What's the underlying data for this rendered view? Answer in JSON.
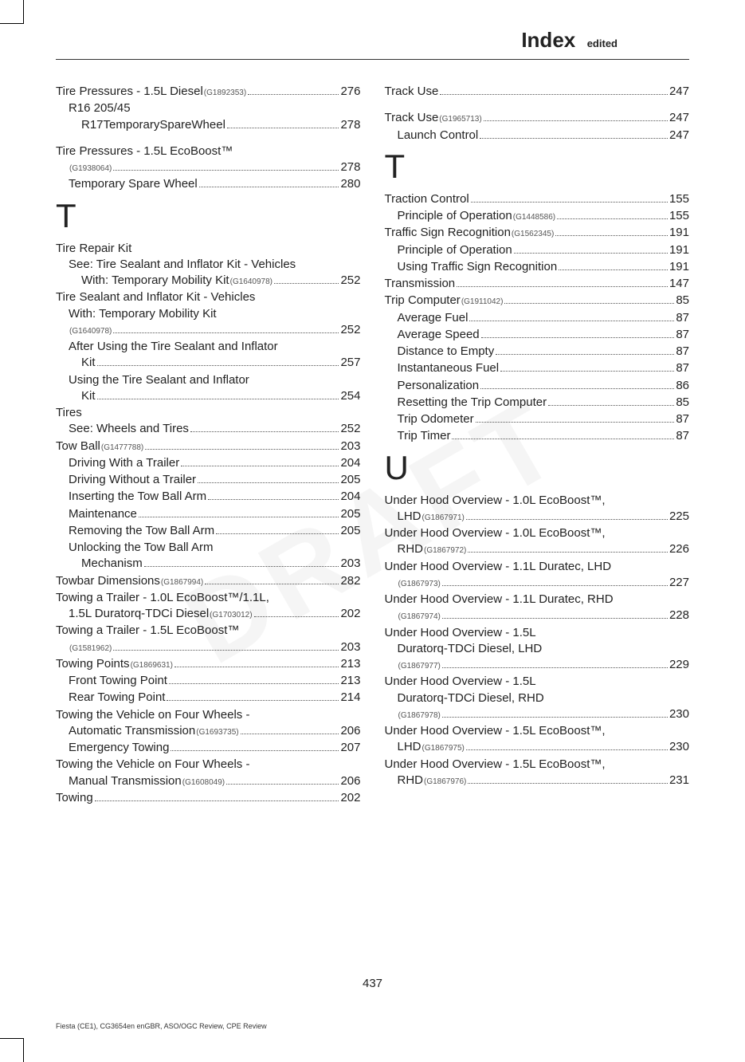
{
  "header": {
    "title": "Index",
    "sub": "edited"
  },
  "page_number": "437",
  "footer": "Fiesta (CE1), CG3654en enGBR, ASO/OGC Review, CPE Review",
  "watermark": "DRAFT",
  "left_col": [
    {
      "type": "entry",
      "indent": 0,
      "label": "Tire Pressures - 1.5L Diesel",
      "code": "(G1892353)",
      "page": "276"
    },
    {
      "type": "text",
      "indent": 1,
      "label": "R16 205/45"
    },
    {
      "type": "entry",
      "indent": 2,
      "label": "R17TemporarySpareWheel",
      "page": "278"
    },
    {
      "type": "gap"
    },
    {
      "type": "text",
      "indent": 0,
      "label": "Tire Pressures - 1.5L EcoBoost™"
    },
    {
      "type": "entry",
      "indent": 1,
      "label": "",
      "code": "(G1938064)",
      "page": "278"
    },
    {
      "type": "entry",
      "indent": 1,
      "label": "Temporary Spare Wheel",
      "page": "280"
    },
    {
      "type": "letter",
      "label": "T"
    },
    {
      "type": "text",
      "indent": 0,
      "label": "Tire Repair Kit"
    },
    {
      "type": "text",
      "indent": 1,
      "label": "See: Tire Sealant and Inflator Kit - Vehicles"
    },
    {
      "type": "entry",
      "indent": 2,
      "label": "With: Temporary Mobility Kit",
      "code": "(G1640978)",
      "page": "252"
    },
    {
      "type": "text",
      "indent": 0,
      "label": "Tire Sealant and Inflator Kit - Vehicles"
    },
    {
      "type": "text",
      "indent": 1,
      "label": "With: Temporary Mobility Kit"
    },
    {
      "type": "entry",
      "indent": 1,
      "label": "",
      "code": "(G1640978)",
      "page": "252"
    },
    {
      "type": "text",
      "indent": 1,
      "label": "After Using the Tire Sealant and Inflator"
    },
    {
      "type": "entry",
      "indent": 2,
      "label": "Kit",
      "page": "257"
    },
    {
      "type": "text",
      "indent": 1,
      "label": "Using the Tire Sealant and Inflator"
    },
    {
      "type": "entry",
      "indent": 2,
      "label": "Kit",
      "page": "254"
    },
    {
      "type": "text",
      "indent": 0,
      "label": "Tires"
    },
    {
      "type": "entry",
      "indent": 1,
      "label": "See: Wheels and Tires",
      "page": "252"
    },
    {
      "type": "entry",
      "indent": 0,
      "label": "Tow Ball",
      "code": "(G1477788)",
      "page": "203"
    },
    {
      "type": "entry",
      "indent": 1,
      "label": "Driving With a Trailer",
      "page": "204"
    },
    {
      "type": "entry",
      "indent": 1,
      "label": "Driving Without a Trailer",
      "page": "205"
    },
    {
      "type": "entry",
      "indent": 1,
      "label": "Inserting the Tow Ball Arm",
      "page": "204"
    },
    {
      "type": "entry",
      "indent": 1,
      "label": "Maintenance",
      "page": "205"
    },
    {
      "type": "entry",
      "indent": 1,
      "label": "Removing the Tow Ball Arm",
      "page": "205"
    },
    {
      "type": "text",
      "indent": 1,
      "label": "Unlocking the Tow Ball Arm"
    },
    {
      "type": "entry",
      "indent": 2,
      "label": "Mechanism",
      "page": "203"
    },
    {
      "type": "entry",
      "indent": 0,
      "label": "Towbar Dimensions",
      "code": "(G1867994)",
      "page": "282"
    },
    {
      "type": "text",
      "indent": 0,
      "label": "Towing a Trailer - 1.0L EcoBoost™/1.1L,"
    },
    {
      "type": "entry",
      "indent": 1,
      "label": "1.5L Duratorq-TDCi Diesel",
      "code": "(G1703012)",
      "page": "202"
    },
    {
      "type": "text",
      "indent": 0,
      "label": "Towing a Trailer - 1.5L EcoBoost™"
    },
    {
      "type": "entry",
      "indent": 1,
      "label": "",
      "code": "(G1581962)",
      "page": "203"
    },
    {
      "type": "entry",
      "indent": 0,
      "label": "Towing Points",
      "code": "(G1869631)",
      "page": "213"
    },
    {
      "type": "entry",
      "indent": 1,
      "label": "Front Towing Point",
      "page": "213"
    },
    {
      "type": "entry",
      "indent": 1,
      "label": "Rear Towing Point",
      "page": "214"
    },
    {
      "type": "text",
      "indent": 0,
      "label": "Towing the Vehicle on Four Wheels -"
    },
    {
      "type": "entry",
      "indent": 1,
      "label": "Automatic Transmission",
      "code": "(G1693735)",
      "page": "206"
    },
    {
      "type": "entry",
      "indent": 1,
      "label": "Emergency Towing",
      "page": "207"
    },
    {
      "type": "text",
      "indent": 0,
      "label": "Towing the Vehicle on Four Wheels -"
    },
    {
      "type": "entry",
      "indent": 1,
      "label": "Manual Transmission",
      "code": "(G1608049)",
      "page": "206"
    },
    {
      "type": "entry",
      "indent": 0,
      "label": "Towing",
      "page": "202"
    }
  ],
  "right_col": [
    {
      "type": "entry",
      "indent": 0,
      "label": "Track Use",
      "page": "247"
    },
    {
      "type": "gap"
    },
    {
      "type": "entry",
      "indent": 0,
      "label": "Track Use",
      "code": "(G1965713)",
      "page": "247"
    },
    {
      "type": "entry",
      "indent": 1,
      "label": "Launch Control",
      "page": "247"
    },
    {
      "type": "letter",
      "label": "T"
    },
    {
      "type": "entry",
      "indent": 0,
      "label": "Traction Control",
      "page": "155"
    },
    {
      "type": "entry",
      "indent": 1,
      "label": "Principle of Operation",
      "code": "(G1448586)",
      "page": "155"
    },
    {
      "type": "entry",
      "indent": 0,
      "label": "Traffic Sign Recognition",
      "code": "(G1562345)",
      "page": "191"
    },
    {
      "type": "entry",
      "indent": 1,
      "label": "Principle of Operation",
      "page": "191"
    },
    {
      "type": "entry",
      "indent": 1,
      "label": "Using Traffic Sign Recognition",
      "page": "191"
    },
    {
      "type": "entry",
      "indent": 0,
      "label": "Transmission",
      "page": "147"
    },
    {
      "type": "entry",
      "indent": 0,
      "label": "Trip Computer",
      "code": "(G1911042)",
      "page": "85"
    },
    {
      "type": "entry",
      "indent": 1,
      "label": "Average Fuel",
      "page": "87"
    },
    {
      "type": "entry",
      "indent": 1,
      "label": "Average Speed",
      "page": "87"
    },
    {
      "type": "entry",
      "indent": 1,
      "label": "Distance to Empty",
      "page": "87"
    },
    {
      "type": "entry",
      "indent": 1,
      "label": "Instantaneous Fuel",
      "page": "87"
    },
    {
      "type": "entry",
      "indent": 1,
      "label": "Personalization",
      "page": "86"
    },
    {
      "type": "entry",
      "indent": 1,
      "label": "Resetting the Trip Computer",
      "page": "85"
    },
    {
      "type": "entry",
      "indent": 1,
      "label": "Trip Odometer",
      "page": "87"
    },
    {
      "type": "entry",
      "indent": 1,
      "label": "Trip Timer",
      "page": "87"
    },
    {
      "type": "letter",
      "label": "U"
    },
    {
      "type": "text",
      "indent": 0,
      "label": "Under Hood Overview - 1.0L EcoBoost™,"
    },
    {
      "type": "entry",
      "indent": 1,
      "label": "LHD",
      "code": "(G1867971)",
      "page": "225"
    },
    {
      "type": "text",
      "indent": 0,
      "label": "Under Hood Overview - 1.0L EcoBoost™,"
    },
    {
      "type": "entry",
      "indent": 1,
      "label": "RHD",
      "code": "(G1867972)",
      "page": "226"
    },
    {
      "type": "text",
      "indent": 0,
      "label": "Under Hood Overview - 1.1L Duratec, LHD"
    },
    {
      "type": "entry",
      "indent": 1,
      "label": "",
      "code": "(G1867973)",
      "page": "227"
    },
    {
      "type": "text",
      "indent": 0,
      "label": "Under Hood Overview - 1.1L Duratec, RHD"
    },
    {
      "type": "entry",
      "indent": 1,
      "label": "",
      "code": "(G1867974)",
      "page": "228"
    },
    {
      "type": "text",
      "indent": 0,
      "label": "Under Hood Overview - 1.5L"
    },
    {
      "type": "text",
      "indent": 1,
      "label": "Duratorq-TDCi Diesel, LHD"
    },
    {
      "type": "entry",
      "indent": 1,
      "label": "",
      "code": "(G1867977)",
      "page": "229"
    },
    {
      "type": "text",
      "indent": 0,
      "label": "Under Hood Overview - 1.5L"
    },
    {
      "type": "text",
      "indent": 1,
      "label": "Duratorq-TDCi Diesel, RHD"
    },
    {
      "type": "entry",
      "indent": 1,
      "label": "",
      "code": "(G1867978)",
      "page": "230"
    },
    {
      "type": "text",
      "indent": 0,
      "label": "Under Hood Overview - 1.5L EcoBoost™,"
    },
    {
      "type": "entry",
      "indent": 1,
      "label": "LHD",
      "code": "(G1867975)",
      "page": "230"
    },
    {
      "type": "text",
      "indent": 0,
      "label": "Under Hood Overview - 1.5L EcoBoost™,"
    },
    {
      "type": "entry",
      "indent": 1,
      "label": "RHD",
      "code": "(G1867976)",
      "page": "231"
    }
  ]
}
